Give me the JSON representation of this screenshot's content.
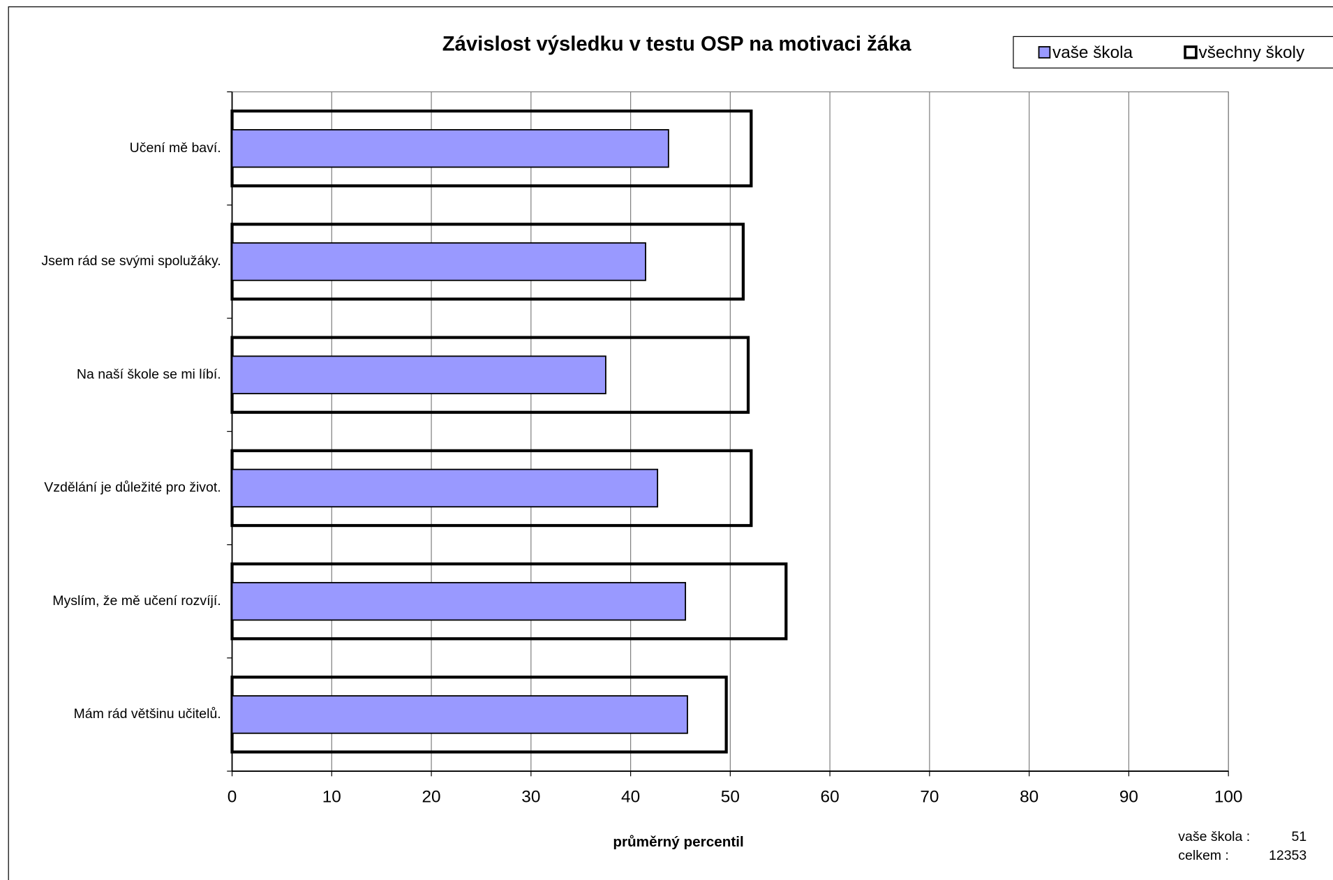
{
  "chart_data": {
    "type": "bar",
    "orientation": "horizontal",
    "title": "Závislost výsledku v testu OSP na motivaci žáka",
    "xlabel": "průměrný percentil",
    "categories": [
      "Učení mě baví.",
      "Jsem rád se svými spolužáky.",
      "Na naší škole se mi líbí.",
      "Vzdělání je důležité pro život.",
      "Myslím, že mě učení rozvíjí.",
      "Mám rád většinu učitelů."
    ],
    "series": [
      {
        "name": "vaše škola",
        "color": "#9999ff",
        "values": [
          43.8,
          41.5,
          37.5,
          42.7,
          45.5,
          45.7
        ]
      },
      {
        "name": "všechny školy",
        "color": "#ffffff",
        "values": [
          52.1,
          51.3,
          51.8,
          52.1,
          55.6,
          49.6
        ]
      }
    ],
    "xlim": [
      0,
      100
    ],
    "xticks": [
      0,
      10,
      20,
      30,
      40,
      50,
      60,
      70,
      80,
      90,
      100
    ],
    "grid": true,
    "legend": "top-right",
    "footer": [
      {
        "label": "vaše škola :",
        "value": "51"
      },
      {
        "label": "celkem :",
        "value": "12353"
      }
    ]
  }
}
